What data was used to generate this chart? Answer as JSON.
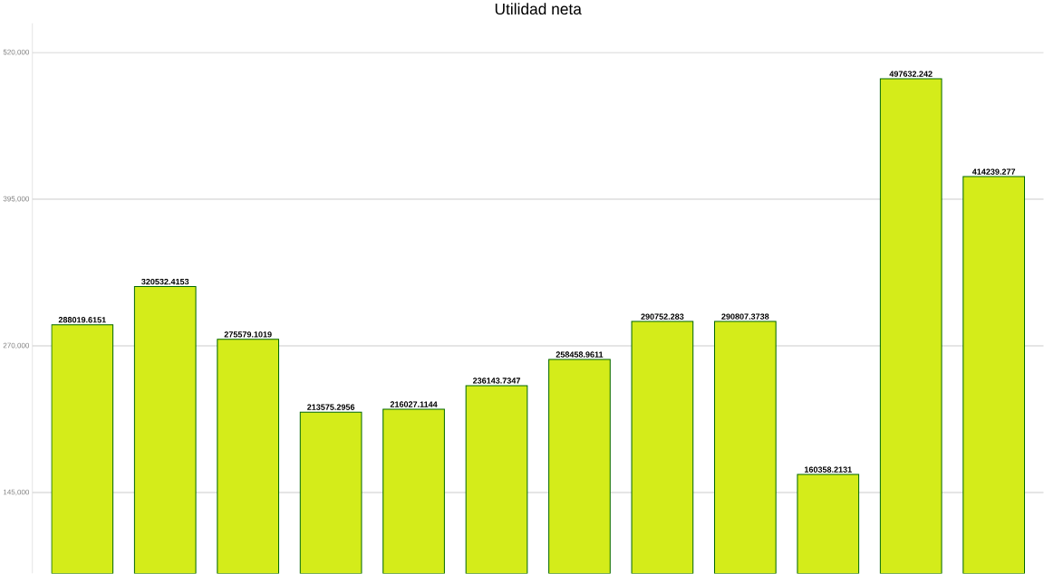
{
  "chart_data": {
    "type": "bar",
    "title": "Utilidad neta",
    "categories": [
      null,
      null,
      null,
      null,
      null,
      null,
      null,
      null,
      null,
      null,
      null,
      null
    ],
    "values": [
      288019.6151,
      320532.4153,
      275579.1019,
      213575.2956,
      216027.1144,
      236143.7347,
      258458.9611,
      290752.283,
      290807.3738,
      160358.2131,
      497632.242,
      414239.277
    ],
    "value_labels": [
      "288019.6151",
      "320532.4153",
      "275579.1019",
      "213575.2956",
      "216027.1144",
      "236143.7347",
      "258458.9611",
      "290752.283",
      "290807.3738",
      "160358.2131",
      "497632.242",
      "414239.277"
    ],
    "color": "#d4ec1a",
    "ylim": [
      76000,
      545000
    ],
    "yticks": [
      {
        "value": 145000,
        "label": "145,000"
      },
      {
        "value": 270000,
        "label": "270,000"
      },
      {
        "value": 395000,
        "label": "395,000"
      },
      {
        "value": 520000,
        "label": "520,000"
      }
    ],
    "grid": "y"
  }
}
